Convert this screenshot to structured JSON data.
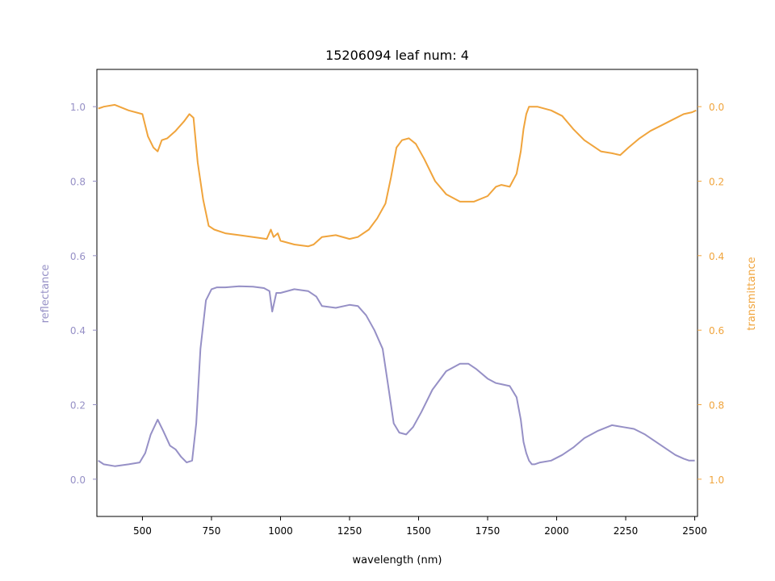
{
  "chart_data": {
    "type": "line",
    "title": "15206094 leaf num: 4",
    "xlabel": "wavelength (nm)",
    "ylabel_left": "reflectance",
    "ylabel_right": "transmittance",
    "xlim": [
      335,
      2510
    ],
    "ylim_left": [
      -0.1,
      1.1
    ],
    "ylim_right_inverted": [
      1.1,
      -0.1
    ],
    "xticks": [
      "500",
      "750",
      "1000",
      "1250",
      "1500",
      "1750",
      "2000",
      "2250",
      "2500"
    ],
    "yticks_left": [
      "0.0",
      "0.2",
      "0.4",
      "0.6",
      "0.8",
      "1.0"
    ],
    "yticks_right": [
      "0.0",
      "0.2",
      "0.4",
      "0.6",
      "0.8",
      "1.0"
    ],
    "grid": false,
    "colors": {
      "reflectance": "#9690c6",
      "transmittance": "#f0a43c",
      "axis": "#000000"
    },
    "series": [
      {
        "name": "reflectance",
        "axis": "left",
        "x": [
          340,
          360,
          400,
          450,
          490,
          510,
          530,
          555,
          575,
          600,
          620,
          640,
          660,
          680,
          695,
          710,
          730,
          750,
          770,
          800,
          850,
          900,
          940,
          960,
          970,
          985,
          1000,
          1050,
          1100,
          1130,
          1150,
          1200,
          1250,
          1280,
          1310,
          1340,
          1370,
          1390,
          1410,
          1430,
          1455,
          1480,
          1510,
          1550,
          1600,
          1650,
          1680,
          1710,
          1750,
          1780,
          1800,
          1830,
          1855,
          1870,
          1880,
          1890,
          1900,
          1910,
          1920,
          1940,
          1980,
          2020,
          2060,
          2100,
          2150,
          2200,
          2240,
          2280,
          2320,
          2360,
          2400,
          2430,
          2460,
          2480,
          2500
        ],
        "y": [
          0.05,
          0.04,
          0.035,
          0.04,
          0.045,
          0.07,
          0.12,
          0.16,
          0.13,
          0.09,
          0.08,
          0.06,
          0.045,
          0.05,
          0.15,
          0.35,
          0.48,
          0.51,
          0.515,
          0.515,
          0.518,
          0.517,
          0.513,
          0.505,
          0.45,
          0.5,
          0.5,
          0.51,
          0.505,
          0.49,
          0.465,
          0.46,
          0.468,
          0.465,
          0.44,
          0.4,
          0.35,
          0.25,
          0.15,
          0.125,
          0.12,
          0.14,
          0.18,
          0.24,
          0.29,
          0.31,
          0.31,
          0.295,
          0.27,
          0.258,
          0.255,
          0.25,
          0.22,
          0.16,
          0.1,
          0.07,
          0.05,
          0.04,
          0.04,
          0.045,
          0.05,
          0.065,
          0.085,
          0.11,
          0.13,
          0.145,
          0.14,
          0.135,
          0.12,
          0.1,
          0.08,
          0.065,
          0.055,
          0.05,
          0.05
        ]
      },
      {
        "name": "transmittance",
        "axis": "right",
        "x": [
          340,
          360,
          400,
          450,
          500,
          520,
          540,
          555,
          570,
          590,
          620,
          650,
          670,
          685,
          700,
          720,
          740,
          760,
          800,
          850,
          900,
          950,
          965,
          975,
          990,
          1000,
          1050,
          1100,
          1120,
          1150,
          1200,
          1250,
          1280,
          1320,
          1350,
          1380,
          1400,
          1420,
          1440,
          1465,
          1490,
          1520,
          1560,
          1600,
          1650,
          1700,
          1750,
          1780,
          1800,
          1830,
          1855,
          1870,
          1880,
          1890,
          1900,
          1905,
          1930,
          1980,
          2020,
          2060,
          2100,
          2130,
          2160,
          2200,
          2230,
          2260,
          2300,
          2340,
          2380,
          2420,
          2460,
          2490,
          2505
        ],
        "y": [
          0.005,
          0.0,
          -0.005,
          0.01,
          0.02,
          0.08,
          0.11,
          0.12,
          0.09,
          0.085,
          0.065,
          0.04,
          0.02,
          0.03,
          0.15,
          0.25,
          0.32,
          0.33,
          0.34,
          0.345,
          0.35,
          0.355,
          0.33,
          0.35,
          0.34,
          0.36,
          0.37,
          0.375,
          0.37,
          0.35,
          0.345,
          0.355,
          0.35,
          0.33,
          0.3,
          0.26,
          0.19,
          0.11,
          0.09,
          0.085,
          0.1,
          0.14,
          0.2,
          0.235,
          0.255,
          0.255,
          0.24,
          0.215,
          0.21,
          0.215,
          0.18,
          0.12,
          0.06,
          0.02,
          0.0,
          0.0,
          0.0,
          0.01,
          0.025,
          0.06,
          0.09,
          0.105,
          0.12,
          0.125,
          0.13,
          0.11,
          0.085,
          0.065,
          0.05,
          0.035,
          0.02,
          0.015,
          0.01
        ]
      }
    ]
  }
}
